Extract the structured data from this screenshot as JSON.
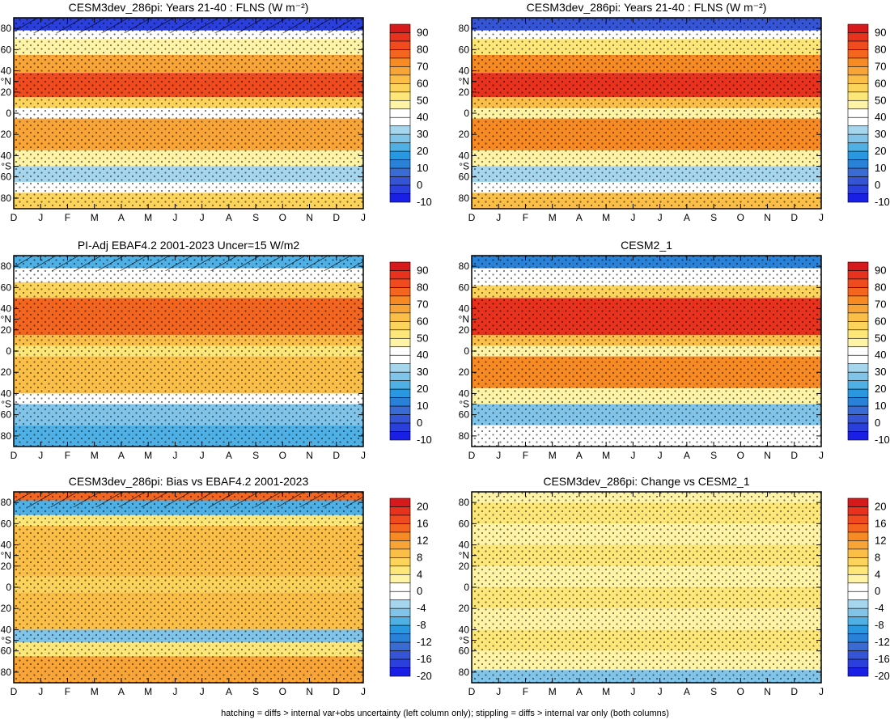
{
  "figure": {
    "footer": "hatching = diffs > internal var+obs uncertainty (left column only); stippling = diffs > internal var only (both columns)"
  },
  "months": [
    "D",
    "J",
    "F",
    "M",
    "A",
    "M",
    "J",
    "J",
    "A",
    "S",
    "O",
    "N",
    "D",
    "J"
  ],
  "lat_ticks": [
    "80",
    "60",
    "40",
    "°N",
    "20",
    "0",
    "20",
    "40",
    "°S",
    "60",
    "80"
  ],
  "lat_tick_values": [
    80,
    60,
    40,
    30,
    20,
    0,
    -20,
    -40,
    -50,
    -60,
    -80
  ],
  "colorbars": {
    "field": {
      "labels": [
        "90",
        "80",
        "70",
        "60",
        "50",
        "40",
        "30",
        "20",
        "10",
        "0",
        "-10"
      ],
      "colors": [
        "#d7191c",
        "#e8321e",
        "#f04a1f",
        "#f4661f",
        "#f78a22",
        "#f9a437",
        "#fbbf48",
        "#fcd45c",
        "#fde778",
        "#fff3a6",
        "#ffffff",
        "#ffffff",
        "#a6d6ee",
        "#80c4ea",
        "#4fb0e6",
        "#2a98e0",
        "#2a82d8",
        "#3a6bd4",
        "#3555d6",
        "#2a3fdc",
        "#1a1fe6"
      ]
    },
    "diff": {
      "labels": [
        "20",
        "16",
        "12",
        "8",
        "4",
        "0",
        "-4",
        "-8",
        "-12",
        "-16",
        "-20"
      ],
      "colors": [
        "#d7191c",
        "#e8321e",
        "#f04a1f",
        "#f4661f",
        "#f78a22",
        "#f9a437",
        "#fbbf48",
        "#fcd45c",
        "#fde778",
        "#fff3a6",
        "#ffffff",
        "#ffffff",
        "#a6d6ee",
        "#80c4ea",
        "#4fb0e6",
        "#2a98e0",
        "#2a82d8",
        "#3a6bd4",
        "#3555d6",
        "#2a3fdc",
        "#1a1fe6"
      ]
    }
  },
  "chart_data": [
    {
      "type": "heatmap",
      "title": "CESM3dev_286pi: Years 21-40 : FLNS (W m⁻²)",
      "xlabel": "",
      "ylabel": "",
      "x": [
        "D",
        "J",
        "F",
        "M",
        "A",
        "M",
        "J",
        "J",
        "A",
        "S",
        "O",
        "N",
        "D",
        "J"
      ],
      "ylim": [
        -90,
        90
      ],
      "colorbar": "field",
      "bands": [
        {
          "lat": [
            78,
            90
          ],
          "value": -5
        },
        {
          "lat": [
            70,
            78
          ],
          "value": 35
        },
        {
          "lat": [
            55,
            70
          ],
          "value": 45
        },
        {
          "lat": [
            38,
            55
          ],
          "value": 65
        },
        {
          "lat": [
            15,
            38
          ],
          "value": 80
        },
        {
          "lat": [
            5,
            15
          ],
          "value": 55
        },
        {
          "lat": [
            -5,
            5
          ],
          "value": 40
        },
        {
          "lat": [
            -35,
            -5
          ],
          "value": 65
        },
        {
          "lat": [
            -50,
            -35
          ],
          "value": 45
        },
        {
          "lat": [
            -65,
            -50
          ],
          "value": 30
        },
        {
          "lat": [
            -75,
            -65
          ],
          "value": 40
        },
        {
          "lat": [
            -90,
            -75
          ],
          "value": 55
        }
      ],
      "stippled": true,
      "hatched": true
    },
    {
      "type": "heatmap",
      "title": "CESM3dev_286pi: Years 21-40 : FLNS (W m⁻²)",
      "xlabel": "",
      "ylabel": "",
      "x": [
        "D",
        "J",
        "F",
        "M",
        "A",
        "M",
        "J",
        "J",
        "A",
        "S",
        "O",
        "N",
        "D",
        "J"
      ],
      "ylim": [
        -90,
        90
      ],
      "colorbar": "field",
      "bands": [
        {
          "lat": [
            78,
            90
          ],
          "value": 0
        },
        {
          "lat": [
            70,
            78
          ],
          "value": 35
        },
        {
          "lat": [
            55,
            70
          ],
          "value": 50
        },
        {
          "lat": [
            38,
            55
          ],
          "value": 70
        },
        {
          "lat": [
            15,
            38
          ],
          "value": 85
        },
        {
          "lat": [
            5,
            15
          ],
          "value": 60
        },
        {
          "lat": [
            -5,
            5
          ],
          "value": 45
        },
        {
          "lat": [
            -35,
            -5
          ],
          "value": 70
        },
        {
          "lat": [
            -50,
            -35
          ],
          "value": 45
        },
        {
          "lat": [
            -65,
            -50
          ],
          "value": 30
        },
        {
          "lat": [
            -75,
            -65
          ],
          "value": 40
        },
        {
          "lat": [
            -90,
            -75
          ],
          "value": 60
        }
      ],
      "stippled": true,
      "hatched": false
    },
    {
      "type": "heatmap",
      "title": "PI-Adj EBAF4.2 2001-2023 Uncer=15 W/m2",
      "xlabel": "",
      "ylabel": "",
      "x": [
        "D",
        "J",
        "F",
        "M",
        "A",
        "M",
        "J",
        "J",
        "A",
        "S",
        "O",
        "N",
        "D",
        "J"
      ],
      "ylim": [
        -90,
        90
      ],
      "colorbar": "field",
      "bands": [
        {
          "lat": [
            78,
            90
          ],
          "value": 20
        },
        {
          "lat": [
            65,
            78
          ],
          "value": 40
        },
        {
          "lat": [
            50,
            65
          ],
          "value": 55
        },
        {
          "lat": [
            15,
            50
          ],
          "value": 75
        },
        {
          "lat": [
            5,
            15
          ],
          "value": 60
        },
        {
          "lat": [
            -5,
            5
          ],
          "value": 50
        },
        {
          "lat": [
            -40,
            -5
          ],
          "value": 60
        },
        {
          "lat": [
            -50,
            -40
          ],
          "value": 40
        },
        {
          "lat": [
            -70,
            -50
          ],
          "value": 25
        },
        {
          "lat": [
            -90,
            -70
          ],
          "value": 20
        }
      ],
      "stippled": true,
      "hatched": true
    },
    {
      "type": "heatmap",
      "title": "CESM2_1",
      "xlabel": "",
      "ylabel": "",
      "x": [
        "D",
        "J",
        "F",
        "M",
        "A",
        "M",
        "J",
        "J",
        "A",
        "S",
        "O",
        "N",
        "D",
        "J"
      ],
      "ylim": [
        -90,
        90
      ],
      "colorbar": "field",
      "bands": [
        {
          "lat": [
            78,
            90
          ],
          "value": 10
        },
        {
          "lat": [
            62,
            78
          ],
          "value": 40
        },
        {
          "lat": [
            50,
            62
          ],
          "value": 55
        },
        {
          "lat": [
            15,
            50
          ],
          "value": 85
        },
        {
          "lat": [
            5,
            15
          ],
          "value": 60
        },
        {
          "lat": [
            -5,
            5
          ],
          "value": 45
        },
        {
          "lat": [
            -35,
            -5
          ],
          "value": 70
        },
        {
          "lat": [
            -50,
            -35
          ],
          "value": 45
        },
        {
          "lat": [
            -70,
            -50
          ],
          "value": 25
        },
        {
          "lat": [
            -90,
            -70
          ],
          "value": 40
        }
      ],
      "stippled": true,
      "hatched": false
    },
    {
      "type": "heatmap",
      "title": "CESM3dev_286pi: Bias vs EBAF4.2 2001-2023",
      "xlabel": "",
      "ylabel": "",
      "x": [
        "D",
        "J",
        "F",
        "M",
        "A",
        "M",
        "J",
        "J",
        "A",
        "S",
        "O",
        "N",
        "D",
        "J"
      ],
      "ylim": [
        -90,
        90
      ],
      "colorbar": "diff",
      "bands": [
        {
          "lat": [
            82,
            90
          ],
          "value": 14
        },
        {
          "lat": [
            68,
            82
          ],
          "value": -8
        },
        {
          "lat": [
            58,
            68
          ],
          "value": 4
        },
        {
          "lat": [
            10,
            58
          ],
          "value": 8
        },
        {
          "lat": [
            -5,
            10
          ],
          "value": 6
        },
        {
          "lat": [
            -40,
            -5
          ],
          "value": 8
        },
        {
          "lat": [
            -52,
            -40
          ],
          "value": -6
        },
        {
          "lat": [
            -65,
            -52
          ],
          "value": 4
        },
        {
          "lat": [
            -90,
            -65
          ],
          "value": 10
        }
      ],
      "stippled": true,
      "hatched": true
    },
    {
      "type": "heatmap",
      "title": "CESM3dev_286pi: Change vs CESM2_1",
      "xlabel": "",
      "ylabel": "",
      "x": [
        "D",
        "J",
        "F",
        "M",
        "A",
        "M",
        "J",
        "J",
        "A",
        "S",
        "O",
        "N",
        "D",
        "J"
      ],
      "ylim": [
        -90,
        90
      ],
      "colorbar": "diff",
      "bands": [
        {
          "lat": [
            80,
            90
          ],
          "value": 2
        },
        {
          "lat": [
            60,
            80
          ],
          "value": 4
        },
        {
          "lat": [
            40,
            60
          ],
          "value": 2
        },
        {
          "lat": [
            20,
            40
          ],
          "value": 4
        },
        {
          "lat": [
            0,
            20
          ],
          "value": 2
        },
        {
          "lat": [
            -20,
            0
          ],
          "value": 4
        },
        {
          "lat": [
            -40,
            -20
          ],
          "value": 2
        },
        {
          "lat": [
            -60,
            -40
          ],
          "value": 4
        },
        {
          "lat": [
            -78,
            -60
          ],
          "value": 3
        },
        {
          "lat": [
            -90,
            -78
          ],
          "value": -6
        }
      ],
      "stippled": true,
      "hatched": false
    }
  ]
}
